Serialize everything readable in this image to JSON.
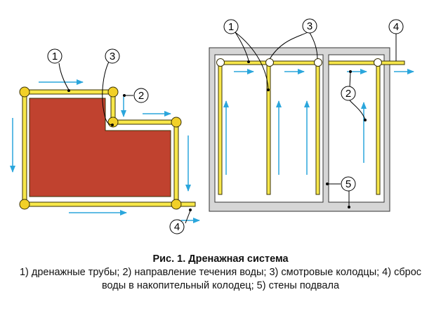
{
  "colors": {
    "pipe_fill": "#f7e74a",
    "pipe_stroke": "#3a3206",
    "building": "#c0422f",
    "basement_wall": "#d6d6d6",
    "flow_arrow": "#2ba6dc",
    "well_fill": "#f2d028",
    "inspection_well_fill": "#ffffff"
  },
  "callouts": {
    "left_pipes": "1",
    "left_wells": "3",
    "left_flow": "2",
    "left_discharge": "4",
    "right_pipes": "1",
    "right_wells": "3",
    "right_discharge": "4",
    "right_flow": "2",
    "right_walls": "5"
  },
  "caption": {
    "title": "Рис. 1. Дренажная система",
    "line1": "1) дренажные трубы; 2) направление течения воды; 3) смотровые колодцы; 4) сброс",
    "line2": "воды в накопительный колодец; 5) стены подвала"
  }
}
